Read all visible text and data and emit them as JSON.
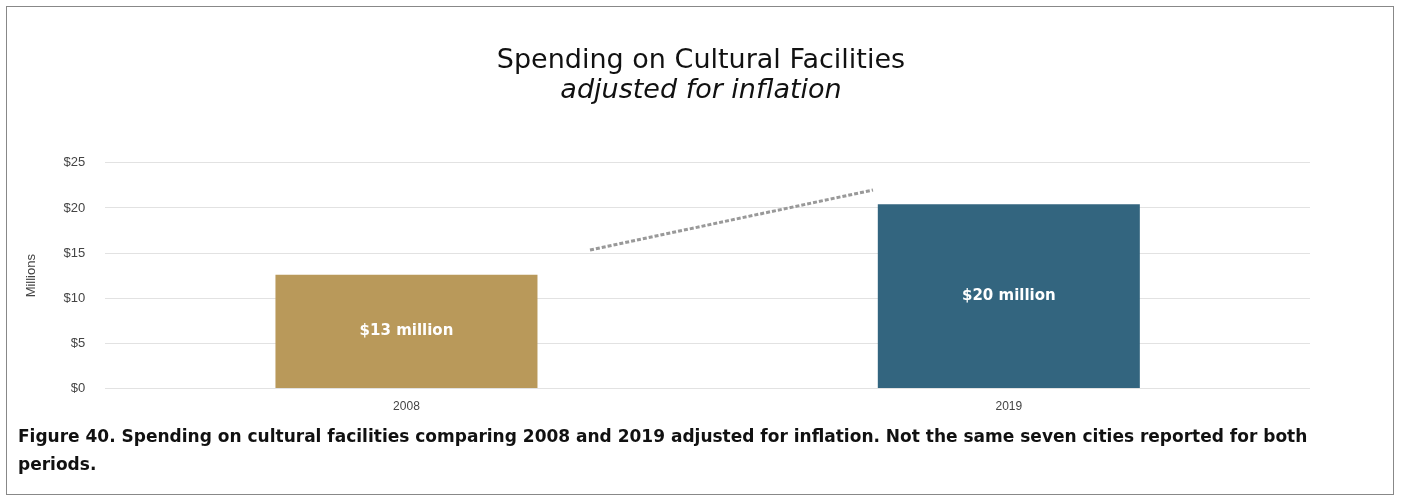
{
  "chart_data": {
    "type": "bar",
    "title": "Spending on Cultural Facilities",
    "subtitle": "adjusted for inflation",
    "ylabel": "Millions",
    "categories": [
      "2008",
      "2019"
    ],
    "values": [
      12.6,
      20.4
    ],
    "colors": [
      "#b9995a",
      "#33657f"
    ],
    "value_labels": [
      "$13 million",
      "$20 million"
    ],
    "ylim": [
      0,
      25
    ],
    "yticks": [
      {
        "value": 0,
        "label": "$0"
      },
      {
        "value": 5,
        "label": "$5"
      },
      {
        "value": 10,
        "label": "$10"
      },
      {
        "value": 15,
        "label": "$15"
      },
      {
        "value": 20,
        "label": "$20"
      },
      {
        "value": 25,
        "label": "$25"
      }
    ],
    "grid": "y",
    "legend": false,
    "annotations": [
      "Figure 40. Spending on cultural facilities comparing 2008 and 2019 adjusted for inflation. Not the same seven cities reported for both periods."
    ]
  }
}
